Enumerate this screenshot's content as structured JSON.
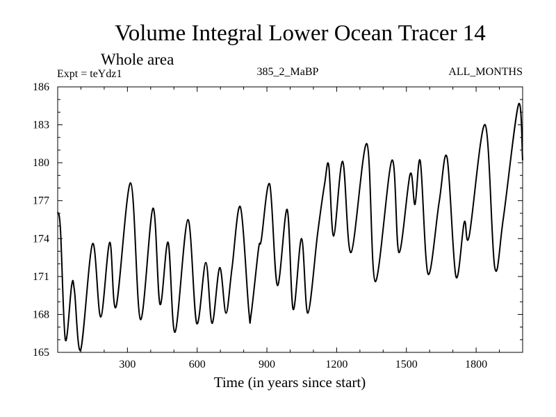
{
  "chart_data": {
    "type": "line",
    "title": "Volume Integral Lower Ocean Tracer 14",
    "subtitle": "Whole area",
    "annotations": {
      "left": "Expt = teYdz1",
      "center": "385_2_MaBP",
      "right": "ALL_MONTHS"
    },
    "xlabel": "Time (in years since start)",
    "ylabel": "",
    "xlim": [
      0,
      2000
    ],
    "ylim": [
      165,
      186
    ],
    "x_ticks": [
      300,
      600,
      900,
      1200,
      1500,
      1800
    ],
    "x_tick_labels": [
      "300",
      "600",
      "900",
      "1200",
      "1500",
      "1800"
    ],
    "x_minor_step": 100,
    "y_ticks": [
      165,
      168,
      171,
      174,
      177,
      180,
      183,
      186
    ],
    "y_tick_labels": [
      "165",
      "168",
      "171",
      "174",
      "177",
      "180",
      "183",
      "186"
    ],
    "y_minor_step": 1,
    "grid": false,
    "legend": "none",
    "series": [
      {
        "name": "Lower Ocean Tracer 14",
        "color": "#000000",
        "x": [
          0,
          12,
          33,
          60,
          72,
          99,
          150,
          185,
          224,
          251,
          314,
          356,
          410,
          440,
          475,
          505,
          560,
          598,
          637,
          664,
          697,
          724,
          750,
          786,
          822,
          832,
          864,
          876,
          912,
          945,
          987,
          1013,
          1049,
          1076,
          1118,
          1148,
          1166,
          1187,
          1226,
          1262,
          1330,
          1366,
          1438,
          1468,
          1516,
          1537,
          1560,
          1593,
          1641,
          1675,
          1713,
          1749,
          1770,
          1839,
          1880,
          1917,
          1982,
          2000
        ],
        "y": [
          176.1,
          174.7,
          166.0,
          170.3,
          169.9,
          165.2,
          173.6,
          167.8,
          173.7,
          168.6,
          178.4,
          167.6,
          176.4,
          168.8,
          173.7,
          166.6,
          175.5,
          167.3,
          172.1,
          167.3,
          171.7,
          168.1,
          171.7,
          176.5,
          168.3,
          168.0,
          173.2,
          173.9,
          178.3,
          170.3,
          176.3,
          168.4,
          174.0,
          168.1,
          174.4,
          178.3,
          179.8,
          174.2,
          180.1,
          172.9,
          181.5,
          170.6,
          180.2,
          172.9,
          179.1,
          176.7,
          180.1,
          171.2,
          176.9,
          180.4,
          171.0,
          175.3,
          174.2,
          183.0,
          171.7,
          175.6,
          184.6,
          180.2
        ]
      }
    ]
  }
}
